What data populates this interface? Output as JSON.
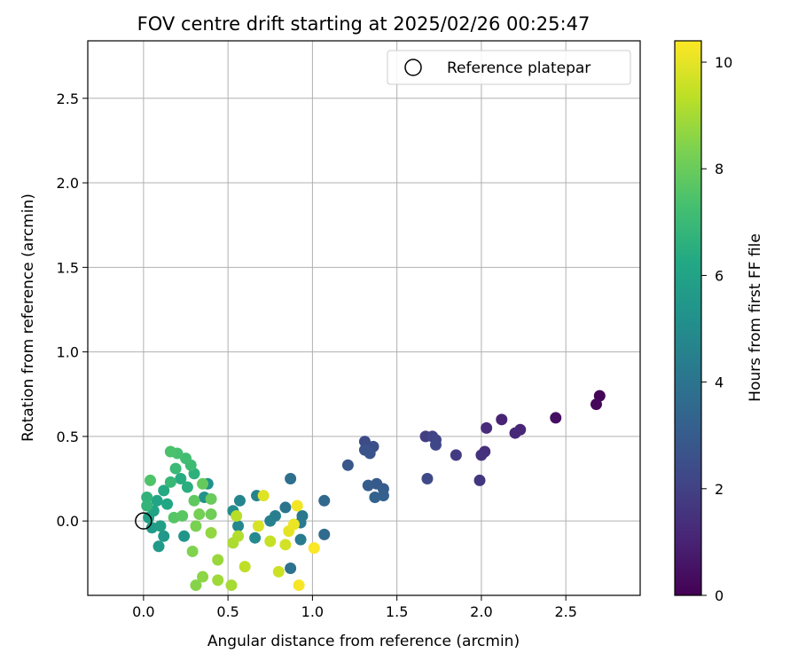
{
  "chart_data": {
    "type": "scatter",
    "title": "FOV centre drift starting at 2025/02/26 00:25:47",
    "xlabel": "Angular distance from reference (arcmin)",
    "ylabel": "Rotation from reference (arcmin)",
    "xlim": [
      -0.33,
      2.94
    ],
    "ylim": [
      -0.44,
      2.84
    ],
    "xticks": [
      0.0,
      0.5,
      1.0,
      1.5,
      2.0,
      2.5
    ],
    "yticks": [
      0.0,
      0.5,
      1.0,
      1.5,
      2.0,
      2.5
    ],
    "xtick_labels": [
      "0.0",
      "0.5",
      "1.0",
      "1.5",
      "2.0",
      "2.5"
    ],
    "ytick_labels": [
      "0.0",
      "0.5",
      "1.0",
      "1.5",
      "2.0",
      "2.5"
    ],
    "grid": true,
    "legend": {
      "placement": "top-right",
      "entries": [
        {
          "label": "Reference platepar",
          "marker": "hollow-circle"
        }
      ]
    },
    "reference_point": {
      "x": 0.0,
      "y": 0.0
    },
    "colorbar": {
      "label": "Hours from first FF file",
      "colormap": "viridis",
      "range": [
        0,
        10.4
      ],
      "ticks": [
        0,
        2,
        4,
        6,
        8,
        10
      ],
      "tick_labels": [
        "0",
        "2",
        "4",
        "6",
        "8",
        "10"
      ]
    },
    "series": [
      {
        "points": [
          {
            "x": 2.7,
            "y": 0.74,
            "c": 0.1
          },
          {
            "x": 2.68,
            "y": 0.69,
            "c": 0.2
          },
          {
            "x": 2.44,
            "y": 0.61,
            "c": 0.4
          },
          {
            "x": 2.12,
            "y": 0.6,
            "c": 1.0
          },
          {
            "x": 2.23,
            "y": 0.54,
            "c": 1.1
          },
          {
            "x": 2.2,
            "y": 0.52,
            "c": 1.2
          },
          {
            "x": 2.03,
            "y": 0.55,
            "c": 1.3
          },
          {
            "x": 2.02,
            "y": 0.41,
            "c": 1.4
          },
          {
            "x": 2.0,
            "y": 0.39,
            "c": 1.5
          },
          {
            "x": 1.99,
            "y": 0.24,
            "c": 1.6
          },
          {
            "x": 1.85,
            "y": 0.39,
            "c": 1.8
          },
          {
            "x": 1.67,
            "y": 0.5,
            "c": 1.9
          },
          {
            "x": 1.71,
            "y": 0.5,
            "c": 2.0
          },
          {
            "x": 1.73,
            "y": 0.48,
            "c": 2.1
          },
          {
            "x": 1.73,
            "y": 0.45,
            "c": 2.2
          },
          {
            "x": 1.68,
            "y": 0.25,
            "c": 2.3
          },
          {
            "x": 1.31,
            "y": 0.47,
            "c": 2.4
          },
          {
            "x": 1.36,
            "y": 0.44,
            "c": 2.5
          },
          {
            "x": 1.31,
            "y": 0.42,
            "c": 2.6
          },
          {
            "x": 1.34,
            "y": 0.4,
            "c": 2.7
          },
          {
            "x": 1.21,
            "y": 0.33,
            "c": 2.8
          },
          {
            "x": 1.38,
            "y": 0.22,
            "c": 2.9
          },
          {
            "x": 1.33,
            "y": 0.21,
            "c": 3.0
          },
          {
            "x": 1.42,
            "y": 0.19,
            "c": 3.1
          },
          {
            "x": 1.42,
            "y": 0.15,
            "c": 3.2
          },
          {
            "x": 1.37,
            "y": 0.14,
            "c": 3.3
          },
          {
            "x": 1.07,
            "y": 0.12,
            "c": 3.5
          },
          {
            "x": 1.07,
            "y": -0.08,
            "c": 3.6
          },
          {
            "x": 0.87,
            "y": 0.25,
            "c": 3.8
          },
          {
            "x": 0.87,
            "y": -0.28,
            "c": 3.9
          },
          {
            "x": 0.84,
            "y": 0.08,
            "c": 4.0
          },
          {
            "x": 0.94,
            "y": 0.03,
            "c": 4.1
          },
          {
            "x": 0.93,
            "y": -0.01,
            "c": 4.2
          },
          {
            "x": 0.93,
            "y": -0.11,
            "c": 4.3
          },
          {
            "x": 0.78,
            "y": 0.03,
            "c": 4.4
          },
          {
            "x": 0.75,
            "y": 0.0,
            "c": 4.5
          },
          {
            "x": 0.67,
            "y": 0.15,
            "c": 4.6
          },
          {
            "x": 0.57,
            "y": 0.12,
            "c": 4.7
          },
          {
            "x": 0.56,
            "y": -0.03,
            "c": 4.8
          },
          {
            "x": 0.66,
            "y": -0.1,
            "c": 4.9
          },
          {
            "x": 0.53,
            "y": 0.06,
            "c": 5.0
          },
          {
            "x": 0.38,
            "y": 0.22,
            "c": 5.2
          },
          {
            "x": 0.36,
            "y": 0.14,
            "c": 5.3
          },
          {
            "x": 0.24,
            "y": -0.09,
            "c": 5.4
          },
          {
            "x": 0.12,
            "y": -0.09,
            "c": 5.5
          },
          {
            "x": 0.09,
            "y": -0.15,
            "c": 5.6
          },
          {
            "x": 0.05,
            "y": -0.04,
            "c": 5.7
          },
          {
            "x": 0.1,
            "y": -0.03,
            "c": 5.8
          },
          {
            "x": 0.03,
            "y": 0.02,
            "c": 5.9
          },
          {
            "x": 0.06,
            "y": 0.06,
            "c": 6.0
          },
          {
            "x": 0.08,
            "y": 0.12,
            "c": 6.1
          },
          {
            "x": 0.14,
            "y": 0.1,
            "c": 6.2
          },
          {
            "x": 0.12,
            "y": 0.18,
            "c": 6.3
          },
          {
            "x": 0.22,
            "y": 0.25,
            "c": 6.4
          },
          {
            "x": 0.26,
            "y": 0.2,
            "c": 6.5
          },
          {
            "x": 0.3,
            "y": 0.28,
            "c": 6.6
          },
          {
            "x": 0.02,
            "y": 0.14,
            "c": 6.7
          },
          {
            "x": 0.02,
            "y": 0.09,
            "c": 6.8
          },
          {
            "x": 0.16,
            "y": 0.23,
            "c": 6.9
          },
          {
            "x": 0.19,
            "y": 0.31,
            "c": 7.0
          },
          {
            "x": 0.28,
            "y": 0.33,
            "c": 7.1
          },
          {
            "x": 0.25,
            "y": 0.37,
            "c": 7.2
          },
          {
            "x": 0.2,
            "y": 0.4,
            "c": 7.3
          },
          {
            "x": 0.16,
            "y": 0.41,
            "c": 7.4
          },
          {
            "x": 0.04,
            "y": 0.24,
            "c": 7.5
          },
          {
            "x": 0.18,
            "y": 0.02,
            "c": 7.6
          },
          {
            "x": 0.23,
            "y": 0.03,
            "c": 7.7
          },
          {
            "x": 0.3,
            "y": 0.12,
            "c": 7.8
          },
          {
            "x": 0.35,
            "y": 0.22,
            "c": 7.9
          },
          {
            "x": 0.4,
            "y": 0.13,
            "c": 8.0
          },
          {
            "x": 0.4,
            "y": 0.04,
            "c": 8.1
          },
          {
            "x": 0.33,
            "y": 0.04,
            "c": 8.2
          },
          {
            "x": 0.31,
            "y": -0.03,
            "c": 8.3
          },
          {
            "x": 0.29,
            "y": -0.18,
            "c": 8.4
          },
          {
            "x": 0.31,
            "y": -0.38,
            "c": 8.5
          },
          {
            "x": 0.35,
            "y": -0.33,
            "c": 8.6
          },
          {
            "x": 0.4,
            "y": -0.07,
            "c": 8.7
          },
          {
            "x": 0.44,
            "y": -0.23,
            "c": 8.8
          },
          {
            "x": 0.44,
            "y": -0.35,
            "c": 8.9
          },
          {
            "x": 0.52,
            "y": -0.38,
            "c": 9.0
          },
          {
            "x": 0.53,
            "y": -0.13,
            "c": 9.1
          },
          {
            "x": 0.56,
            "y": -0.09,
            "c": 9.2
          },
          {
            "x": 0.55,
            "y": 0.03,
            "c": 9.3
          },
          {
            "x": 0.6,
            "y": -0.27,
            "c": 9.4
          },
          {
            "x": 0.75,
            "y": -0.12,
            "c": 9.5
          },
          {
            "x": 0.8,
            "y": -0.3,
            "c": 9.6
          },
          {
            "x": 0.84,
            "y": -0.14,
            "c": 9.7
          },
          {
            "x": 0.68,
            "y": -0.03,
            "c": 9.8
          },
          {
            "x": 0.71,
            "y": 0.15,
            "c": 9.9
          },
          {
            "x": 0.86,
            "y": -0.06,
            "c": 10.0
          },
          {
            "x": 0.89,
            "y": -0.02,
            "c": 10.1
          },
          {
            "x": 0.91,
            "y": 0.09,
            "c": 10.2
          },
          {
            "x": 0.92,
            "y": -0.38,
            "c": 10.3
          },
          {
            "x": 1.01,
            "y": -0.16,
            "c": 10.35
          }
        ]
      }
    ]
  }
}
